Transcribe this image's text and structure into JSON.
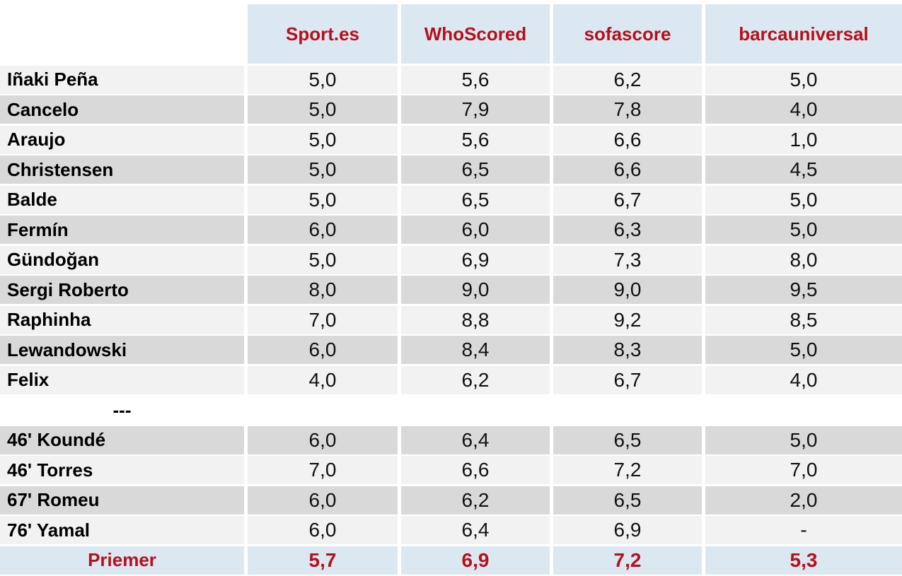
{
  "colors": {
    "accent_red": "#b80f1b",
    "header_bg": "#dbe8f2",
    "row_light": "#f2f2f2",
    "row_dark": "#d9d9d9"
  },
  "chart_data": {
    "type": "table",
    "columns": [
      "Sport.es",
      "WhoScored",
      "sofascore",
      "barcauniversal"
    ],
    "rows": [
      {
        "label": "Iñaki Peña",
        "type": "starter",
        "values": [
          "5,0",
          "5,6",
          "6,2",
          "5,0"
        ]
      },
      {
        "label": "Cancelo",
        "type": "starter",
        "values": [
          "5,0",
          "7,9",
          "7,8",
          "4,0"
        ]
      },
      {
        "label": "Araujo",
        "type": "starter",
        "values": [
          "5,0",
          "5,6",
          "6,6",
          "1,0"
        ]
      },
      {
        "label": "Christensen",
        "type": "starter",
        "values": [
          "5,0",
          "6,5",
          "6,6",
          "4,5"
        ]
      },
      {
        "label": "Balde",
        "type": "starter",
        "values": [
          "5,0",
          "6,5",
          "6,7",
          "5,0"
        ]
      },
      {
        "label": "Fermín",
        "type": "starter",
        "values": [
          "6,0",
          "6,0",
          "6,3",
          "5,0"
        ]
      },
      {
        "label": "Gündoğan",
        "type": "starter",
        "values": [
          "5,0",
          "6,9",
          "7,3",
          "8,0"
        ]
      },
      {
        "label": "Sergi Roberto",
        "type": "starter",
        "values": [
          "8,0",
          "9,0",
          "9,0",
          "9,5"
        ]
      },
      {
        "label": "Raphinha",
        "type": "starter",
        "values": [
          "7,0",
          "8,8",
          "9,2",
          "8,5"
        ]
      },
      {
        "label": "Lewandowski",
        "type": "starter",
        "values": [
          "6,0",
          "8,4",
          "8,3",
          "5,0"
        ]
      },
      {
        "label": "Felix",
        "type": "starter",
        "values": [
          "4,0",
          "6,2",
          "6,7",
          "4,0"
        ]
      },
      {
        "label": "---",
        "type": "separator",
        "values": [
          "",
          "",
          "",
          ""
        ]
      },
      {
        "label": "46' Koundé",
        "type": "substitute",
        "values": [
          "6,0",
          "6,4",
          "6,5",
          "5,0"
        ]
      },
      {
        "label": "46' Torres",
        "type": "substitute",
        "values": [
          "7,0",
          "6,6",
          "7,2",
          "7,0"
        ]
      },
      {
        "label": "67' Romeu",
        "type": "substitute",
        "values": [
          "6,0",
          "6,2",
          "6,5",
          "2,0"
        ]
      },
      {
        "label": "76' Yamal",
        "type": "substitute",
        "values": [
          "6,0",
          "6,4",
          "6,9",
          "-"
        ]
      },
      {
        "label": "Priemer",
        "type": "summary",
        "values": [
          "5,7",
          "6,9",
          "7,2",
          "5,3"
        ]
      }
    ]
  }
}
